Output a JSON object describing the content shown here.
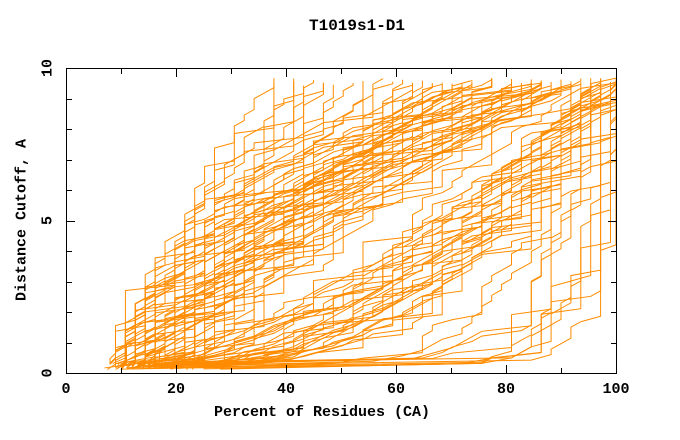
{
  "page": {
    "background": "#ffffff"
  },
  "chart_data": {
    "type": "line",
    "title": "T1019s1-D1",
    "xlabel": "Percent of Residues (CA)",
    "ylabel": "Distance Cutoff, A",
    "xlim": [
      0,
      100
    ],
    "ylim": [
      0,
      10
    ],
    "x_ticks_major": [
      0,
      20,
      40,
      60,
      80,
      100
    ],
    "x_tick_labels": [
      "0",
      "20",
      "40",
      "60",
      "80",
      "100"
    ],
    "x_ticks_minor": [
      10,
      30,
      50,
      70,
      90
    ],
    "y_ticks_major": [
      0,
      5,
      10
    ],
    "y_tick_labels": [
      "0",
      "5",
      "10"
    ],
    "y_ticks_minor": [
      1,
      2,
      3,
      4,
      6,
      7,
      8,
      9
    ],
    "grid": false,
    "legend": null,
    "line_color": "#ff8c00",
    "axis_color": "#000000",
    "text_color": "#000000",
    "tick_direction": "in",
    "n_curves": 102,
    "curve_model": "Each orange trace is a monotonically non-decreasing model-accuracy curve (percent of CA residues within the distance cutoff). Params per curve: [percent_near_cutoff_0, percent_at_cutoff_10, shape_exponent]; values estimated from the plot.",
    "seed": 1019,
    "y_start_range": [
      0.1,
      0.32
    ],
    "y_top_range": [
      9.42,
      9.67
    ],
    "percent_quantum": 1.8,
    "series_params": [
      [
        7.5,
        36,
        1.2
      ],
      [
        8,
        40,
        1.0
      ],
      [
        9,
        43,
        1.4
      ],
      [
        10,
        38,
        1.6
      ],
      [
        8.5,
        47,
        1.1
      ],
      [
        11,
        52,
        1.3
      ],
      [
        9.5,
        55,
        0.95
      ],
      [
        12,
        44,
        1.8
      ],
      [
        10.5,
        50,
        1.5
      ],
      [
        13,
        54,
        1.05
      ],
      [
        7,
        42,
        1.25
      ],
      [
        14,
        48,
        2.0
      ],
      [
        8,
        58,
        1.6
      ],
      [
        9,
        62,
        1.2
      ],
      [
        10,
        65,
        1.9
      ],
      [
        11,
        68,
        1.0
      ],
      [
        12,
        72,
        1.4
      ],
      [
        9,
        75,
        2.2
      ],
      [
        10,
        78,
        1.7
      ],
      [
        13,
        60,
        0.9
      ],
      [
        14,
        66,
        1.3
      ],
      [
        15,
        70,
        2.0
      ],
      [
        8,
        80,
        1.5
      ],
      [
        9,
        82,
        1.1
      ],
      [
        10,
        85,
        1.8
      ],
      [
        11,
        88,
        1.35
      ],
      [
        12,
        90,
        2.3
      ],
      [
        13,
        92,
        1.05
      ],
      [
        14,
        94,
        1.6
      ],
      [
        15,
        86,
        1.25
      ],
      [
        16,
        76,
        1.9
      ],
      [
        17,
        84,
        1.45
      ],
      [
        18,
        64,
        1.15
      ],
      [
        19,
        74,
        1.7
      ],
      [
        20,
        83,
        2.1
      ],
      [
        16,
        91,
        1.0
      ],
      [
        12,
        79,
        1.55
      ],
      [
        11,
        87,
        2.4
      ],
      [
        10,
        71,
        1.05
      ],
      [
        9,
        69,
        1.85
      ],
      [
        13,
        77,
        1.3
      ],
      [
        14,
        81,
        1.65
      ],
      [
        15,
        89,
        1.2
      ],
      [
        17,
        93,
        1.5
      ],
      [
        18,
        95,
        1.9
      ],
      [
        19,
        67,
        1.1
      ],
      [
        20,
        73,
        1.6
      ],
      [
        21,
        85,
        1.35
      ],
      [
        22,
        78,
        2.0
      ],
      [
        23,
        88,
        1.2
      ],
      [
        24,
        92,
        1.7
      ],
      [
        25,
        83,
        1.4
      ],
      [
        12,
        63,
        2.1
      ],
      [
        13,
        70,
        1.0
      ],
      [
        16,
        80,
        1.45
      ],
      [
        18,
        86,
        1.8
      ],
      [
        20,
        90,
        1.25
      ],
      [
        22,
        94,
        1.55
      ],
      [
        11,
        59,
        1.35
      ],
      [
        9,
        73,
        1.6
      ],
      [
        10,
        90,
        1.9
      ],
      [
        14,
        87,
        1.1
      ],
      [
        10,
        96,
        0.55
      ],
      [
        11,
        97,
        0.45
      ],
      [
        12,
        98,
        0.6
      ],
      [
        13,
        99,
        0.4
      ],
      [
        14,
        100,
        0.7
      ],
      [
        15,
        97,
        0.5
      ],
      [
        16,
        98,
        0.35
      ],
      [
        17,
        99,
        0.65
      ],
      [
        18,
        100,
        0.45
      ],
      [
        19,
        96,
        0.75
      ],
      [
        20,
        98,
        0.55
      ],
      [
        22,
        99,
        0.4
      ],
      [
        24,
        100,
        0.6
      ],
      [
        26,
        98,
        0.5
      ],
      [
        28,
        99,
        0.7
      ],
      [
        30,
        97,
        0.45
      ],
      [
        12,
        95,
        0.8
      ],
      [
        14,
        96,
        0.35
      ],
      [
        16,
        100,
        0.55
      ],
      [
        18,
        97,
        0.65
      ],
      [
        20,
        100,
        0.5
      ],
      [
        23,
        98,
        0.75
      ],
      [
        25,
        99,
        0.42
      ],
      [
        27,
        100,
        0.58
      ],
      [
        9,
        94,
        0.62
      ],
      [
        11,
        99,
        0.33
      ],
      [
        13,
        97,
        0.52
      ],
      [
        15,
        99,
        0.72
      ],
      [
        17,
        96,
        0.47
      ],
      [
        12,
        97,
        0.07
      ],
      [
        15,
        98,
        0.06
      ],
      [
        18,
        99,
        0.09
      ],
      [
        20,
        100,
        0.05
      ],
      [
        13,
        96,
        0.12
      ],
      [
        16,
        97,
        0.18
      ],
      [
        22,
        98,
        0.14
      ],
      [
        25,
        100,
        0.1
      ],
      [
        10,
        95,
        0.2
      ],
      [
        19,
        99,
        0.16
      ],
      [
        28,
        100,
        0.12
      ]
    ]
  }
}
